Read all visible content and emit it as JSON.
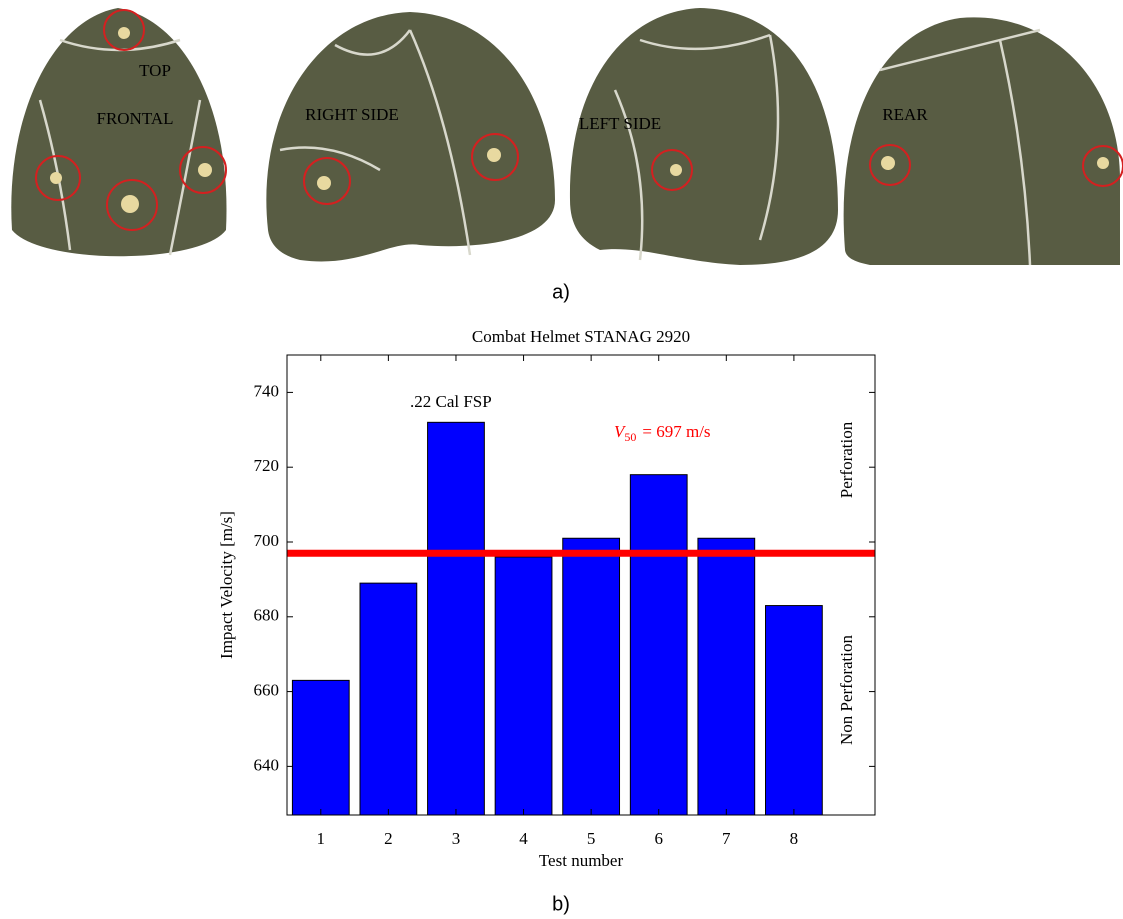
{
  "panel_a": {
    "labels": [
      "TOP",
      "FRONTAL",
      "RIGHT SIDE",
      "LEFT SIDE",
      "REAR"
    ],
    "caption": "a)"
  },
  "chart_data": {
    "type": "bar",
    "title": "Combat Helmet STANAG 2920",
    "xlabel": "Test number",
    "ylabel": "Impact Velocity [m/s]",
    "x": [
      1,
      2,
      3,
      4,
      5,
      6,
      7,
      8
    ],
    "series": [
      {
        "name": ".22 Cal FSP",
        "color": "#0000ff",
        "values": [
          663,
          689,
          732,
          696,
          701,
          718,
          701,
          683
        ]
      }
    ],
    "xlim": [
      0.5,
      9.2
    ],
    "xticks": [
      1,
      2,
      3,
      4,
      5,
      6,
      7,
      8
    ],
    "ylim": [
      627,
      750
    ],
    "yticks": [
      640,
      660,
      680,
      700,
      720,
      740
    ],
    "reference_line": {
      "value": 697,
      "color": "#ff0000",
      "label_var": "V",
      "label_sub": "50",
      "label_rest": "= 697 m/s"
    },
    "region_labels": [
      "Perforation",
      "Non Perforation"
    ],
    "grid": false
  },
  "caption_b": "b)"
}
